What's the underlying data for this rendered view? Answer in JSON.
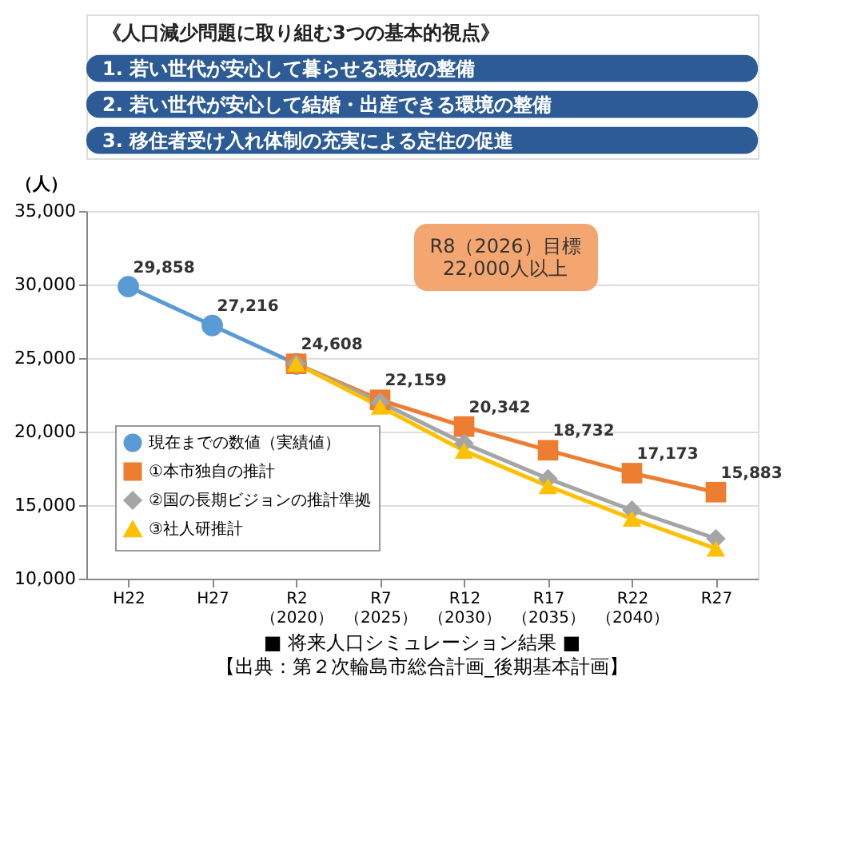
{
  "chart_data": {
    "type": "line",
    "subtitle": "■ 将来人口シミュレーション結果 ■",
    "ylabel": "（人）",
    "categories": [
      "H22",
      "H27",
      "R2\n（2020）",
      "R7\n（2025）",
      "R12\n（2030）",
      "R17\n（2035）",
      "R22\n（2040）",
      "R27"
    ],
    "ylim": [
      10000,
      35000
    ],
    "yticks": [
      {
        "value": 10000,
        "label": "10,000"
      },
      {
        "value": 15000,
        "label": "15,000"
      },
      {
        "value": 20000,
        "label": "20,000"
      },
      {
        "value": 25000,
        "label": "25,000"
      },
      {
        "value": 30000,
        "label": "30,000"
      },
      {
        "value": 35000,
        "label": "35,000"
      }
    ],
    "grid": "y",
    "legend": "bottom left",
    "series": [
      {
        "name": "現在までの数値（実績値）",
        "color": "#5b9bd5",
        "marker": "circle",
        "values": [
          29858,
          27216,
          24608,
          null,
          null,
          null,
          null,
          null
        ],
        "value_labels": [
          "29,858",
          "27,216",
          "24,608",
          null,
          null,
          null,
          null,
          null
        ]
      },
      {
        "name": "①本市独自の推計",
        "color": "#ed7d31",
        "marker": "square",
        "values": [
          null,
          null,
          24608,
          22159,
          20342,
          18732,
          17173,
          15883
        ],
        "value_labels": [
          null,
          null,
          null,
          "22,159",
          "20,342",
          "18,732",
          "17,173",
          "15,883"
        ]
      },
      {
        "name": "②国の長期ビジョンの推計準拠",
        "color": "#a5a5a5",
        "marker": "diamond",
        "values": [
          null,
          null,
          24608,
          22000,
          19200,
          16800,
          14660,
          12720
        ]
      },
      {
        "name": "③社人研推計",
        "color": "#ffc000",
        "marker": "triangle",
        "values": [
          null,
          null,
          24608,
          21700,
          18700,
          16300,
          14080,
          12040
        ]
      }
    ],
    "annotations": [
      "《人口減少問題に取り組む3つの基本的視点》",
      "1. 若い世代が安心して暮らせる環境の整備",
      "2. 若い世代が安心して結婚・出産できる環境の整備",
      "3. 移住者受け入れ体制の充実による定住の促進",
      "R8（2026）目標\n22,000人以上",
      "【出典：第２次輪島市総合計画_後期基本計画】"
    ]
  }
}
